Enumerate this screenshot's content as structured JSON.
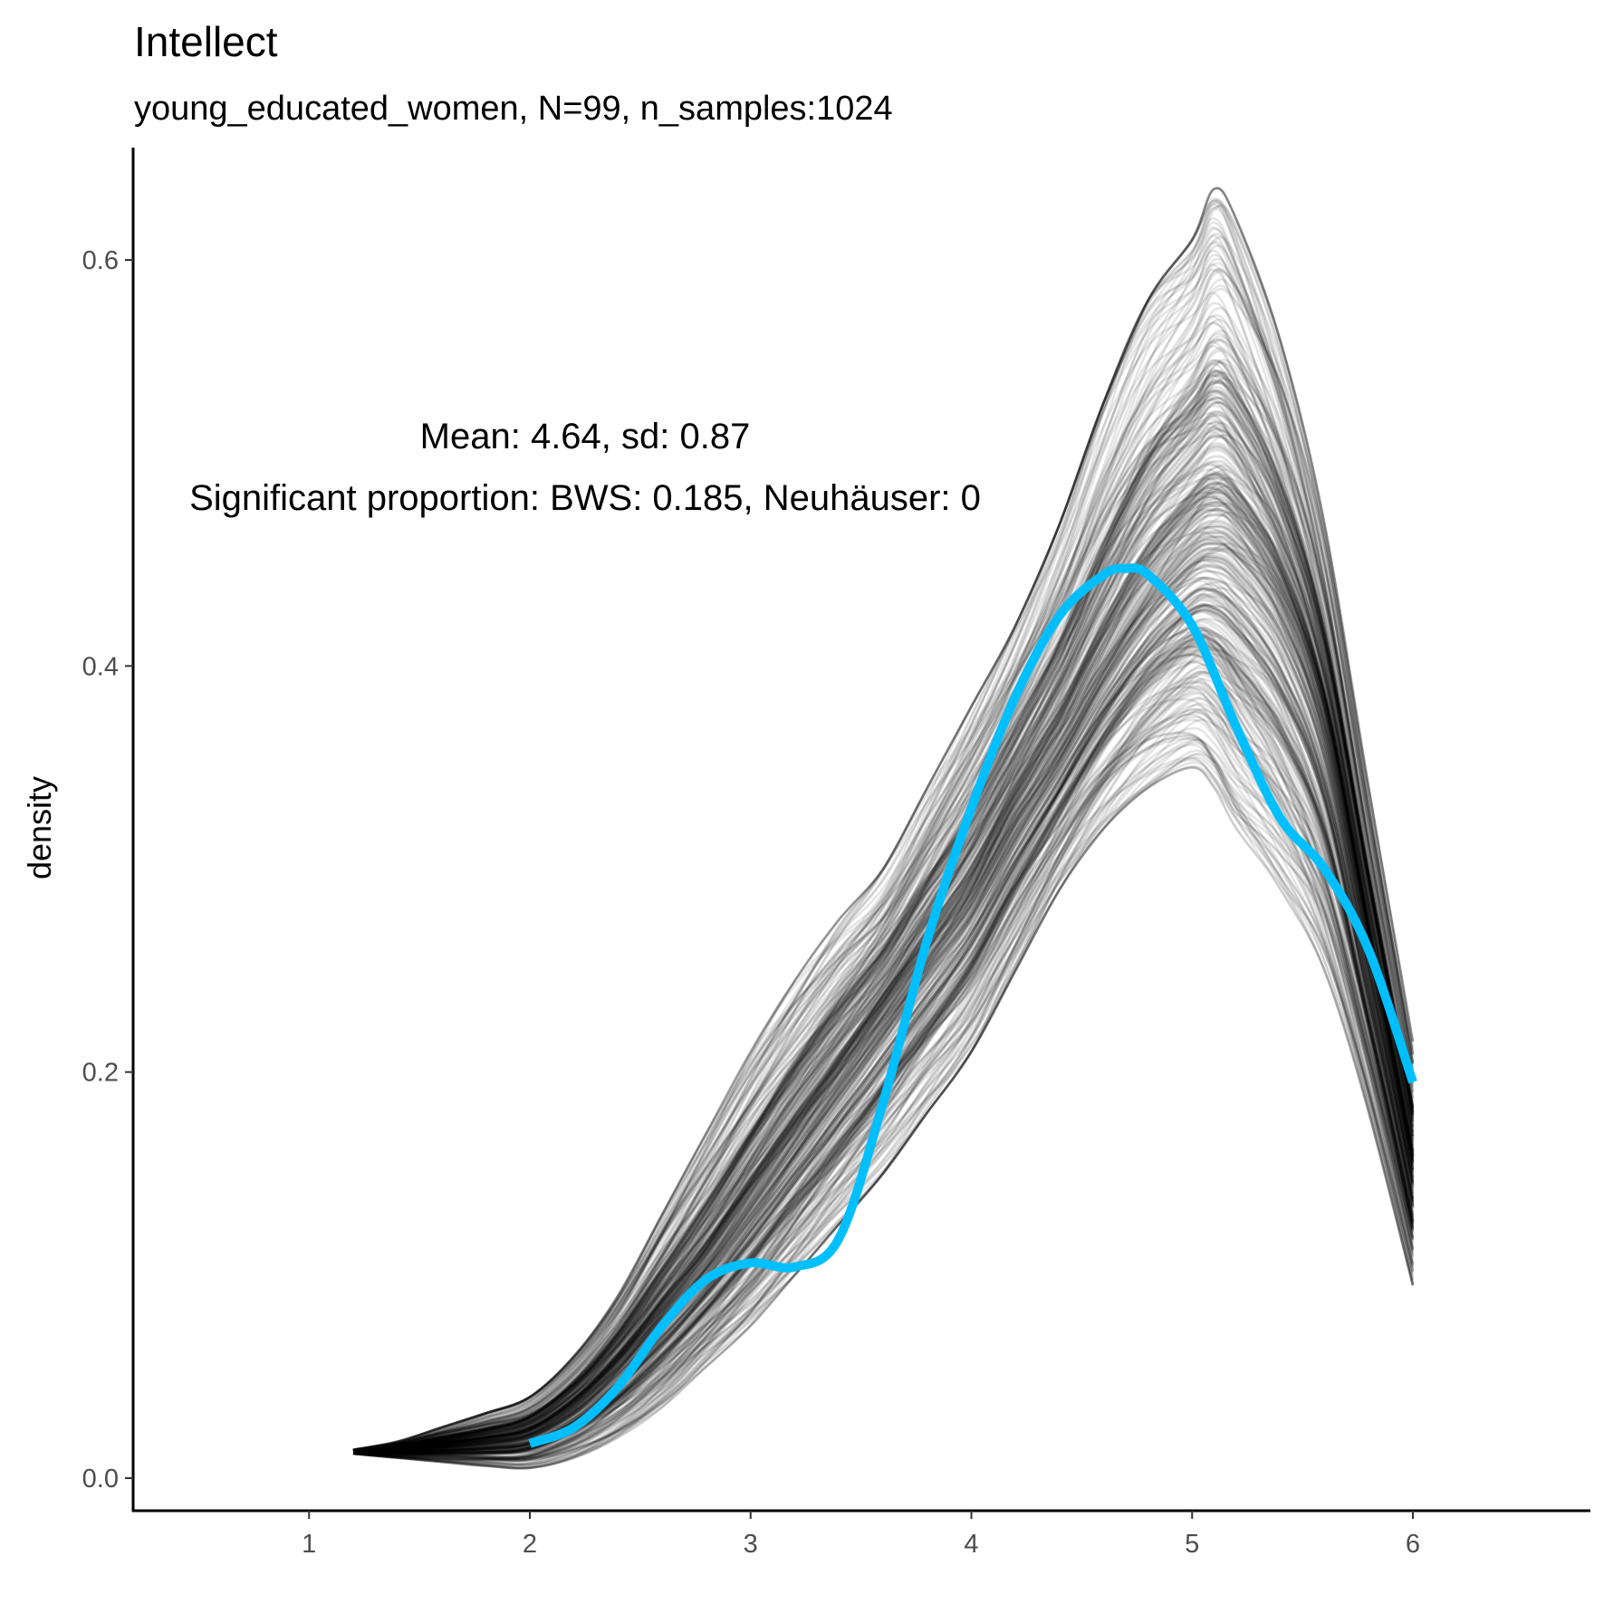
{
  "chart_data": {
    "type": "line",
    "title": "Intellect",
    "subtitle": "young_educated_women, N=99, n_samples:1024",
    "xlabel": "",
    "ylabel": "density",
    "xlim": [
      0.2,
      6.8
    ],
    "ylim": [
      -0.03,
      0.65
    ],
    "x_ticks": [
      1,
      2,
      3,
      4,
      5,
      6
    ],
    "y_ticks": [
      0.0,
      0.2,
      0.4,
      0.6
    ],
    "x_tick_labels": [
      "1",
      "2",
      "3",
      "4",
      "5",
      "6"
    ],
    "y_tick_labels": [
      "0.0",
      "0.2",
      "0.4",
      "0.6"
    ],
    "grid": false,
    "annotations": [
      "Mean: 4.64, sd: 0.87",
      "Significant proportion: BWS: 0.185, Neuhäuser: 0"
    ],
    "series": [
      {
        "role": "observed",
        "color": "#00BFFF",
        "x": [
          2.0,
          2.2,
          2.4,
          2.6,
          2.8,
          3.0,
          3.2,
          3.4,
          3.6,
          3.8,
          4.0,
          4.2,
          4.4,
          4.6,
          4.7,
          4.8,
          5.0,
          5.2,
          5.4,
          5.6,
          5.8,
          6.0
        ],
        "y": [
          0.017,
          0.025,
          0.045,
          0.075,
          0.098,
          0.106,
          0.104,
          0.118,
          0.185,
          0.265,
          0.33,
          0.385,
          0.425,
          0.445,
          0.448,
          0.445,
          0.42,
          0.37,
          0.325,
          0.3,
          0.26,
          0.195
        ]
      },
      {
        "role": "bootstrap_band",
        "color": "#000000",
        "count": 1024,
        "x": [
          1.2,
          1.4,
          1.6,
          1.8,
          2.0,
          2.2,
          2.4,
          2.6,
          2.8,
          3.0,
          3.2,
          3.4,
          3.6,
          3.8,
          4.0,
          4.2,
          4.4,
          4.6,
          4.8,
          5.0,
          5.1,
          5.2,
          5.4,
          5.6,
          5.8,
          6.0
        ],
        "center": [
          0.013,
          0.014,
          0.016,
          0.018,
          0.022,
          0.035,
          0.055,
          0.08,
          0.105,
          0.135,
          0.165,
          0.195,
          0.225,
          0.255,
          0.285,
          0.325,
          0.36,
          0.4,
          0.435,
          0.46,
          0.465,
          0.46,
          0.43,
          0.37,
          0.26,
          0.15
        ],
        "lower": [
          0.012,
          0.01,
          0.008,
          0.006,
          0.005,
          0.01,
          0.02,
          0.035,
          0.055,
          0.075,
          0.1,
          0.125,
          0.15,
          0.18,
          0.21,
          0.25,
          0.29,
          0.32,
          0.34,
          0.35,
          0.34,
          0.32,
          0.29,
          0.25,
          0.18,
          0.095
        ],
        "upper": [
          0.014,
          0.018,
          0.025,
          0.032,
          0.04,
          0.06,
          0.09,
          0.13,
          0.17,
          0.21,
          0.245,
          0.275,
          0.3,
          0.34,
          0.38,
          0.42,
          0.47,
          0.53,
          0.58,
          0.61,
          0.635,
          0.62,
          0.56,
          0.47,
          0.34,
          0.215
        ]
      }
    ]
  }
}
